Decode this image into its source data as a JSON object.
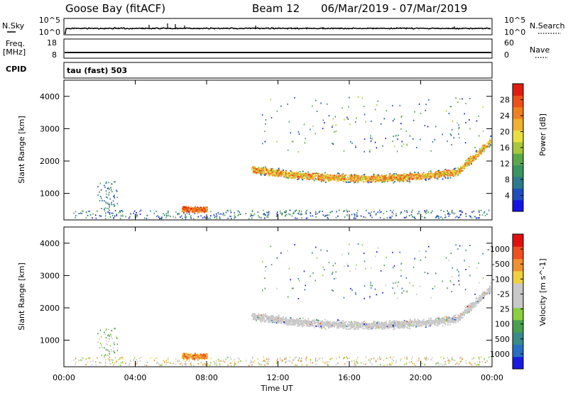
{
  "header": {
    "title": "Goose Bay (fitACF)",
    "beam": "Beam 12",
    "date_range": "06/Mar/2019 - 07/Mar/2019"
  },
  "top_panels": {
    "nsky_label": "N.Sky",
    "nsearch_label": "N.Search",
    "noise_ticks_left": [
      "10^5",
      "10^0"
    ],
    "noise_ticks_right": [
      "10^5",
      "10^0"
    ],
    "freq_label": "Freq.",
    "freq_unit": "[MHz]",
    "freq_ticks": [
      "18",
      "8"
    ],
    "nave_label": "Nave",
    "nave_ticks": [
      "60",
      "0"
    ],
    "cpid_label": "CPID",
    "cpid_value": "tau (fast) 503"
  },
  "x_axis": {
    "label": "Time UT",
    "ticks": [
      "00:00",
      "04:00",
      "08:00",
      "12:00",
      "16:00",
      "20:00",
      "00:00"
    ]
  },
  "colors": {
    "power_scale": [
      "#1414e6",
      "#1f4fbf",
      "#2f7a8a",
      "#3c9460",
      "#5aa84a",
      "#a8c83a",
      "#e8e040",
      "#f0b030",
      "#f08020",
      "#ee5018",
      "#e01c10"
    ],
    "velocity_scale": [
      "#1a1ae0",
      "#2a6ec0",
      "#3a8a8a",
      "#4aa050",
      "#8ad040",
      "#c8c8c8",
      "#c8c8c8",
      "#f0d040",
      "#f09030",
      "#f05020",
      "#e01010"
    ]
  },
  "chart_data": [
    {
      "type": "line",
      "name": "noise",
      "ylabel_left": "N.Sky",
      "ylabel_right": "N.Search",
      "xlim_hours": [
        0,
        24
      ],
      "ylim": [
        "10^0",
        "10^5"
      ]
    },
    {
      "type": "line",
      "name": "frequency",
      "ylabel_left": "Freq. [MHz]",
      "ylabel_right": "Nave",
      "ylim_left": [
        8,
        18
      ],
      "ylim_right": [
        0,
        60
      ]
    },
    {
      "type": "heatmap",
      "name": "power",
      "ylabel": "Slant Range [km]",
      "xlabel": "",
      "xlim_hours": [
        0,
        24
      ],
      "ylim_km": [
        180,
        4500
      ],
      "yticks": [
        1000,
        2000,
        3000,
        4000
      ],
      "colorbar": {
        "label": "Power [dB]",
        "range": [
          0,
          30
        ],
        "tick_labels": [
          "4",
          "8",
          "12",
          "16",
          "20",
          "24",
          "28"
        ]
      },
      "echo_regions": [
        {
          "t_start": 10.5,
          "t_end": 23.9,
          "range_center_km": 1650,
          "value": "12-24 dB"
        },
        {
          "t_start": 6.5,
          "t_end": 8.0,
          "range_center_km": 500,
          "value": "24-30 dB"
        },
        {
          "t_start": 0.5,
          "t_end": 23.8,
          "range_center_km": 300,
          "value": "4-12 dB"
        }
      ]
    },
    {
      "type": "heatmap",
      "name": "velocity",
      "ylabel": "Slant Range [km]",
      "xlabel": "Time UT",
      "xlim_hours": [
        0,
        24
      ],
      "ylim_km": [
        180,
        4500
      ],
      "yticks": [
        1000,
        2000,
        3000,
        4000
      ],
      "colorbar": {
        "label": "Velocity [m s^-1]",
        "tick_labels": [
          "1000",
          "500",
          "100",
          "25",
          "-25",
          "-100",
          "-500",
          "-1000"
        ]
      },
      "echo_regions": [
        {
          "t_start": 10.5,
          "t_end": 23.9,
          "range_center_km": 1650,
          "value": "-25 to 25 m/s"
        },
        {
          "t_start": 6.5,
          "t_end": 8.0,
          "range_center_km": 500,
          "value": "-100 to -500 m/s"
        }
      ]
    }
  ]
}
